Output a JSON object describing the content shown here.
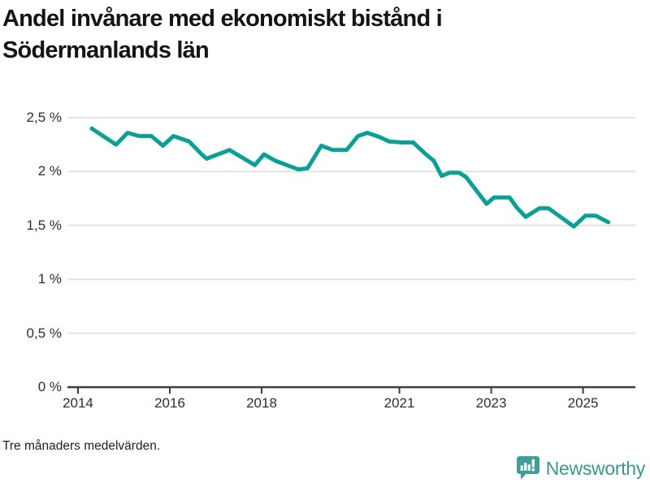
{
  "title": {
    "text": "Andel invånare med ekonomiskt bistånd i Södermanlands län",
    "lines": [
      "Andel invånare med ekonomiskt bistånd i",
      "Södermanlands län"
    ]
  },
  "footer": {
    "note": "Tre månaders medelvärden."
  },
  "branding": {
    "name": "Newsworthy",
    "icon": "newsworthy-speech-bubble-bar-chart-icon",
    "icon_color": "#3f9e98",
    "text_color": "#3a968f"
  },
  "colors": {
    "line": "#0aa096",
    "grid": "#e3e3e3",
    "axis": "#3d3d3d",
    "tick_text": "#2e2e2e",
    "background": "#ffffff"
  },
  "chart_data": {
    "type": "line",
    "title": "Andel invånare med ekonomiskt bistånd i Södermanlands län",
    "note": "Tre månaders medelvärden.",
    "xlabel": "",
    "ylabel": "",
    "x_unit": "year",
    "y_unit": "percent",
    "xlim": [
      2013.77,
      2026.14
    ],
    "ylim": [
      0,
      2.5
    ],
    "grid": "horizontal",
    "legend": "none",
    "y_ticks": [
      {
        "value": 0,
        "label": "0 %"
      },
      {
        "value": 0.5,
        "label": "0,5 %"
      },
      {
        "value": 1,
        "label": "1 %"
      },
      {
        "value": 1.5,
        "label": "1,5 %"
      },
      {
        "value": 2,
        "label": "2 %"
      },
      {
        "value": 2.5,
        "label": "2,5 %"
      }
    ],
    "x_ticks": [
      {
        "value": 2014,
        "label": "2014"
      },
      {
        "value": 2016,
        "label": "2016"
      },
      {
        "value": 2018,
        "label": "2018"
      },
      {
        "value": 2021,
        "label": "2021"
      },
      {
        "value": 2023,
        "label": "2023"
      },
      {
        "value": 2025,
        "label": "2025"
      }
    ],
    "series": [
      {
        "name": "Andel invånare med ekonomiskt bistånd, Södermanlands län (tre månaders medelvärde)",
        "color": "#0aa096",
        "points": [
          [
            2014.3,
            2.4
          ],
          [
            2014.83,
            2.25
          ],
          [
            2015.08,
            2.36
          ],
          [
            2015.33,
            2.33
          ],
          [
            2015.6,
            2.33
          ],
          [
            2015.85,
            2.24
          ],
          [
            2016.08,
            2.33
          ],
          [
            2016.42,
            2.28
          ],
          [
            2016.67,
            2.17
          ],
          [
            2016.8,
            2.12
          ],
          [
            2017.3,
            2.2
          ],
          [
            2017.85,
            2.06
          ],
          [
            2018.05,
            2.16
          ],
          [
            2018.3,
            2.1
          ],
          [
            2018.8,
            2.02
          ],
          [
            2019.0,
            2.03
          ],
          [
            2019.3,
            2.24
          ],
          [
            2019.55,
            2.2
          ],
          [
            2019.85,
            2.2
          ],
          [
            2020.1,
            2.33
          ],
          [
            2020.3,
            2.36
          ],
          [
            2020.57,
            2.32
          ],
          [
            2020.77,
            2.28
          ],
          [
            2021.05,
            2.27
          ],
          [
            2021.3,
            2.27
          ],
          [
            2021.58,
            2.16
          ],
          [
            2021.75,
            2.1
          ],
          [
            2021.92,
            1.96
          ],
          [
            2022.1,
            1.99
          ],
          [
            2022.3,
            1.99
          ],
          [
            2022.45,
            1.95
          ],
          [
            2022.9,
            1.7
          ],
          [
            2023.06,
            1.76
          ],
          [
            2023.4,
            1.76
          ],
          [
            2023.55,
            1.67
          ],
          [
            2023.75,
            1.58
          ],
          [
            2024.05,
            1.66
          ],
          [
            2024.25,
            1.66
          ],
          [
            2024.8,
            1.49
          ],
          [
            2025.05,
            1.59
          ],
          [
            2025.28,
            1.59
          ],
          [
            2025.55,
            1.53
          ]
        ]
      }
    ]
  }
}
